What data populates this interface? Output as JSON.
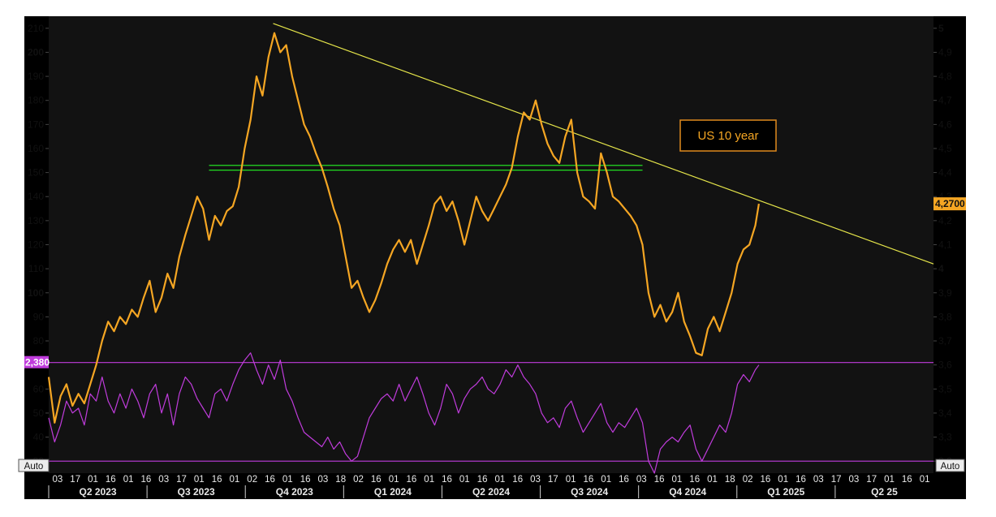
{
  "chart_data": {
    "type": "line",
    "title": "",
    "annotation": "US 10 year",
    "left_axis": {
      "ticks": [
        "30",
        "40",
        "50",
        "60",
        "70",
        "80",
        "90",
        "100",
        "110",
        "120",
        "130",
        "140",
        "150",
        "160",
        "170",
        "180",
        "190",
        "200",
        "210"
      ],
      "tick_values": [
        30,
        40,
        50,
        60,
        70,
        80,
        90,
        100,
        110,
        120,
        130,
        140,
        150,
        160,
        170,
        180,
        190,
        200,
        210
      ],
      "ylim": [
        25,
        215
      ],
      "marker_label": "2,380"
    },
    "right_axis": {
      "ticks": [
        "3,2",
        "3,3",
        "3,4",
        "3,5",
        "3,6",
        "3,7",
        "3,8",
        "3,9",
        "4",
        "4,1",
        "4,2",
        "4,3",
        "4,4",
        "4,5",
        "4,6",
        "4,7",
        "4,8",
        "4,9",
        "5"
      ],
      "tick_values": [
        3.2,
        3.3,
        3.4,
        3.5,
        3.6,
        3.7,
        3.8,
        3.9,
        4.0,
        4.1,
        4.2,
        4.3,
        4.4,
        4.5,
        4.6,
        4.7,
        4.8,
        4.9,
        5.0
      ],
      "ylim": [
        3.15,
        5.05
      ],
      "last_value_label": "4,2700",
      "last_value": 4.27
    },
    "x_axis": {
      "day_ticks": [
        "03",
        "17",
        "01",
        "16",
        "01",
        "16",
        "03",
        "17",
        "01",
        "16",
        "01",
        "02",
        "16",
        "01",
        "16",
        "03",
        "18",
        "02",
        "16",
        "01",
        "16",
        "01",
        "16",
        "01",
        "16",
        "01",
        "16",
        "03",
        "17",
        "01",
        "16",
        "01",
        "16",
        "03",
        "16",
        "01",
        "16",
        "01",
        "18",
        "02",
        "16",
        "01",
        "16",
        "03",
        "17",
        "03",
        "17",
        "01",
        "16",
        "01"
      ],
      "quarters": [
        "Q2 2023",
        "Q3 2023",
        "Q4 2023",
        "Q1 2024",
        "Q2 2024",
        "Q3 2024",
        "Q4 2024",
        "Q1 2025",
        "Q2 25"
      ],
      "auto_label_left": "Auto",
      "auto_label_right": "Auto",
      "x_range_days": [
        0,
        745
      ]
    },
    "series": [
      {
        "name": "US 10 year",
        "color": "#f5a623",
        "axis": "right",
        "points": [
          [
            0,
            3.55
          ],
          [
            5,
            3.36
          ],
          [
            10,
            3.47
          ],
          [
            15,
            3.52
          ],
          [
            20,
            3.43
          ],
          [
            25,
            3.48
          ],
          [
            30,
            3.44
          ],
          [
            35,
            3.52
          ],
          [
            40,
            3.6
          ],
          [
            45,
            3.7
          ],
          [
            50,
            3.78
          ],
          [
            55,
            3.74
          ],
          [
            60,
            3.8
          ],
          [
            65,
            3.77
          ],
          [
            70,
            3.83
          ],
          [
            75,
            3.8
          ],
          [
            80,
            3.88
          ],
          [
            85,
            3.95
          ],
          [
            90,
            3.82
          ],
          [
            95,
            3.88
          ],
          [
            100,
            3.98
          ],
          [
            105,
            3.92
          ],
          [
            110,
            4.05
          ],
          [
            115,
            4.14
          ],
          [
            120,
            4.22
          ],
          [
            125,
            4.3
          ],
          [
            130,
            4.25
          ],
          [
            135,
            4.12
          ],
          [
            140,
            4.22
          ],
          [
            145,
            4.18
          ],
          [
            150,
            4.24
          ],
          [
            155,
            4.26
          ],
          [
            160,
            4.34
          ],
          [
            165,
            4.5
          ],
          [
            170,
            4.62
          ],
          [
            175,
            4.8
          ],
          [
            180,
            4.72
          ],
          [
            185,
            4.88
          ],
          [
            190,
            4.98
          ],
          [
            195,
            4.9
          ],
          [
            200,
            4.93
          ],
          [
            205,
            4.8
          ],
          [
            210,
            4.7
          ],
          [
            215,
            4.6
          ],
          [
            220,
            4.55
          ],
          [
            225,
            4.48
          ],
          [
            230,
            4.42
          ],
          [
            235,
            4.34
          ],
          [
            240,
            4.25
          ],
          [
            245,
            4.18
          ],
          [
            250,
            4.05
          ],
          [
            255,
            3.92
          ],
          [
            260,
            3.95
          ],
          [
            265,
            3.88
          ],
          [
            270,
            3.82
          ],
          [
            275,
            3.87
          ],
          [
            280,
            3.94
          ],
          [
            285,
            4.02
          ],
          [
            290,
            4.08
          ],
          [
            295,
            4.12
          ],
          [
            300,
            4.07
          ],
          [
            305,
            4.12
          ],
          [
            310,
            4.02
          ],
          [
            315,
            4.1
          ],
          [
            320,
            4.18
          ],
          [
            325,
            4.27
          ],
          [
            330,
            4.3
          ],
          [
            335,
            4.24
          ],
          [
            340,
            4.28
          ],
          [
            345,
            4.2
          ],
          [
            350,
            4.1
          ],
          [
            355,
            4.2
          ],
          [
            360,
            4.3
          ],
          [
            365,
            4.24
          ],
          [
            370,
            4.2
          ],
          [
            375,
            4.25
          ],
          [
            380,
            4.3
          ],
          [
            385,
            4.35
          ],
          [
            390,
            4.42
          ],
          [
            395,
            4.55
          ],
          [
            400,
            4.65
          ],
          [
            405,
            4.62
          ],
          [
            410,
            4.7
          ],
          [
            415,
            4.6
          ],
          [
            420,
            4.52
          ],
          [
            425,
            4.47
          ],
          [
            430,
            4.44
          ],
          [
            435,
            4.55
          ],
          [
            440,
            4.62
          ],
          [
            445,
            4.4
          ],
          [
            450,
            4.3
          ],
          [
            455,
            4.28
          ],
          [
            460,
            4.25
          ],
          [
            465,
            4.48
          ],
          [
            470,
            4.4
          ],
          [
            475,
            4.3
          ],
          [
            480,
            4.28
          ],
          [
            485,
            4.25
          ],
          [
            490,
            4.22
          ],
          [
            495,
            4.18
          ],
          [
            500,
            4.1
          ],
          [
            505,
            3.9
          ],
          [
            510,
            3.8
          ],
          [
            515,
            3.85
          ],
          [
            520,
            3.78
          ],
          [
            525,
            3.82
          ],
          [
            530,
            3.9
          ],
          [
            535,
            3.78
          ],
          [
            540,
            3.72
          ],
          [
            545,
            3.65
          ],
          [
            550,
            3.64
          ],
          [
            555,
            3.75
          ],
          [
            560,
            3.8
          ],
          [
            565,
            3.74
          ],
          [
            570,
            3.82
          ],
          [
            575,
            3.9
          ],
          [
            580,
            4.02
          ],
          [
            585,
            4.08
          ],
          [
            590,
            4.1
          ],
          [
            595,
            4.18
          ],
          [
            598,
            4.27
          ]
        ]
      },
      {
        "name": "",
        "color": "#c03cdc",
        "axis": "left",
        "points": [
          [
            0,
            48
          ],
          [
            5,
            38
          ],
          [
            10,
            45
          ],
          [
            15,
            55
          ],
          [
            20,
            50
          ],
          [
            25,
            52
          ],
          [
            30,
            45
          ],
          [
            35,
            58
          ],
          [
            40,
            55
          ],
          [
            45,
            65
          ],
          [
            50,
            55
          ],
          [
            55,
            50
          ],
          [
            60,
            58
          ],
          [
            65,
            52
          ],
          [
            70,
            60
          ],
          [
            75,
            55
          ],
          [
            80,
            48
          ],
          [
            85,
            58
          ],
          [
            90,
            62
          ],
          [
            95,
            50
          ],
          [
            100,
            58
          ],
          [
            105,
            45
          ],
          [
            110,
            58
          ],
          [
            115,
            65
          ],
          [
            120,
            62
          ],
          [
            125,
            56
          ],
          [
            130,
            52
          ],
          [
            135,
            48
          ],
          [
            140,
            58
          ],
          [
            145,
            60
          ],
          [
            150,
            55
          ],
          [
            155,
            62
          ],
          [
            160,
            68
          ],
          [
            165,
            72
          ],
          [
            170,
            75
          ],
          [
            175,
            68
          ],
          [
            180,
            62
          ],
          [
            185,
            70
          ],
          [
            190,
            64
          ],
          [
            195,
            72
          ],
          [
            200,
            60
          ],
          [
            205,
            55
          ],
          [
            210,
            48
          ],
          [
            215,
            42
          ],
          [
            220,
            40
          ],
          [
            225,
            38
          ],
          [
            230,
            36
          ],
          [
            235,
            40
          ],
          [
            240,
            35
          ],
          [
            245,
            38
          ],
          [
            250,
            33
          ],
          [
            255,
            30
          ],
          [
            260,
            32
          ],
          [
            265,
            40
          ],
          [
            270,
            48
          ],
          [
            275,
            52
          ],
          [
            280,
            56
          ],
          [
            285,
            58
          ],
          [
            290,
            55
          ],
          [
            295,
            62
          ],
          [
            300,
            55
          ],
          [
            305,
            60
          ],
          [
            310,
            65
          ],
          [
            315,
            58
          ],
          [
            320,
            50
          ],
          [
            325,
            45
          ],
          [
            330,
            52
          ],
          [
            335,
            62
          ],
          [
            340,
            58
          ],
          [
            345,
            50
          ],
          [
            350,
            56
          ],
          [
            355,
            60
          ],
          [
            360,
            62
          ],
          [
            365,
            65
          ],
          [
            370,
            60
          ],
          [
            375,
            58
          ],
          [
            380,
            62
          ],
          [
            385,
            68
          ],
          [
            390,
            65
          ],
          [
            395,
            70
          ],
          [
            400,
            65
          ],
          [
            405,
            62
          ],
          [
            410,
            58
          ],
          [
            415,
            50
          ],
          [
            420,
            46
          ],
          [
            425,
            48
          ],
          [
            430,
            44
          ],
          [
            435,
            52
          ],
          [
            440,
            55
          ],
          [
            445,
            48
          ],
          [
            450,
            42
          ],
          [
            455,
            46
          ],
          [
            460,
            50
          ],
          [
            465,
            54
          ],
          [
            470,
            46
          ],
          [
            475,
            42
          ],
          [
            480,
            46
          ],
          [
            485,
            44
          ],
          [
            490,
            48
          ],
          [
            495,
            52
          ],
          [
            500,
            46
          ],
          [
            505,
            30
          ],
          [
            510,
            25
          ],
          [
            515,
            35
          ],
          [
            520,
            38
          ],
          [
            525,
            40
          ],
          [
            530,
            38
          ],
          [
            535,
            42
          ],
          [
            540,
            45
          ],
          [
            545,
            35
          ],
          [
            550,
            30
          ],
          [
            555,
            35
          ],
          [
            560,
            40
          ],
          [
            565,
            45
          ],
          [
            570,
            42
          ],
          [
            575,
            50
          ],
          [
            580,
            62
          ],
          [
            585,
            66
          ],
          [
            590,
            63
          ],
          [
            595,
            68
          ],
          [
            598,
            70
          ]
        ]
      }
    ],
    "horizontal_lines": [
      {
        "name": "magenta-upper-line",
        "axis": "left",
        "value": 71,
        "color": "#c03cdc"
      },
      {
        "name": "magenta-lower-line",
        "axis": "left",
        "value": 30,
        "color": "#c03cdc"
      },
      {
        "name": "green-resistance-line-upper",
        "axis": "right",
        "value": 4.43,
        "color": "#22dd22"
      },
      {
        "name": "green-resistance-line-lower",
        "axis": "right",
        "value": 4.41,
        "color": "#22dd22"
      }
    ],
    "trendline": {
      "axis": "right",
      "color": "#e6e64a",
      "from": [
        189,
        5.02
      ],
      "to": [
        745,
        4.02
      ]
    },
    "green_line_x": [
      135,
      500
    ],
    "grid": false,
    "legend": "none",
    "colors": {
      "background": "#121212",
      "panel": "#000000",
      "price": "#f5a623",
      "oscillator": "#c03cdc",
      "trend": "#e6e64a",
      "support": "#22dd22"
    }
  }
}
